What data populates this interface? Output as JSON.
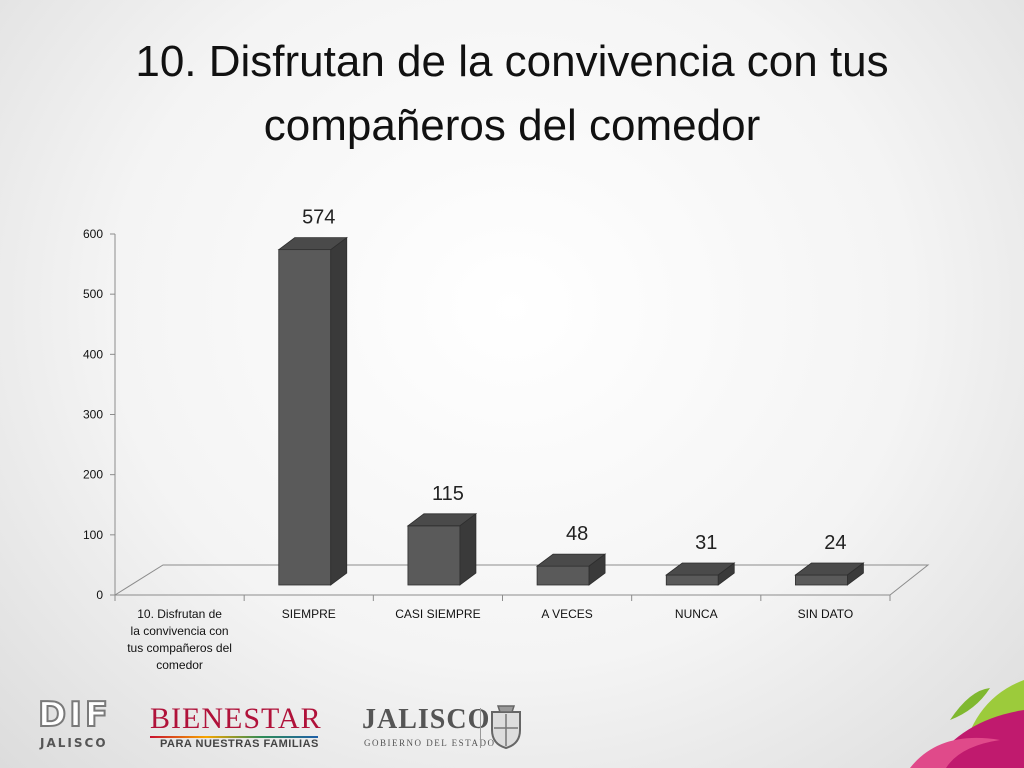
{
  "slide": {
    "title": "10. Disfrutan de la convivencia con tus compañeros del comedor"
  },
  "chart_data": {
    "type": "bar",
    "style": "3d-column",
    "categories": [
      "10. Disfrutan de la convivencia con tus compañeros del comedor",
      "SIEMPRE",
      "CASI SIEMPRE",
      "A VECES",
      "NUNCA",
      "SIN DATO"
    ],
    "series": [
      {
        "values": [
          null,
          574,
          115,
          48,
          31,
          24
        ]
      }
    ],
    "data_labels": [
      "",
      "574",
      "115",
      "48",
      "31",
      "24"
    ],
    "yticks": [
      0,
      100,
      200,
      300,
      400,
      500,
      600
    ],
    "ylim": [
      0,
      600
    ],
    "grid": false,
    "legend": "none",
    "colors": {
      "bar_front": "#5a5a5a",
      "bar_top": "#4a4a4a",
      "bar_side": "#3a3a3a",
      "axis": "#8c8c8c"
    }
  },
  "footer": {
    "dif_logo": "DIF",
    "dif_sub": "JALISCO",
    "bienestar_logo": "BIENESTAR",
    "bienestar_sub": "PARA NUESTRAS FAMILIAS",
    "jalisco_logo": "JALISCO",
    "jalisco_sub": "GOBIERNO DEL ESTADO",
    "shield_icon": "coat-of-arms-icon",
    "leaf_icon": "leaf-decoration-icon"
  }
}
